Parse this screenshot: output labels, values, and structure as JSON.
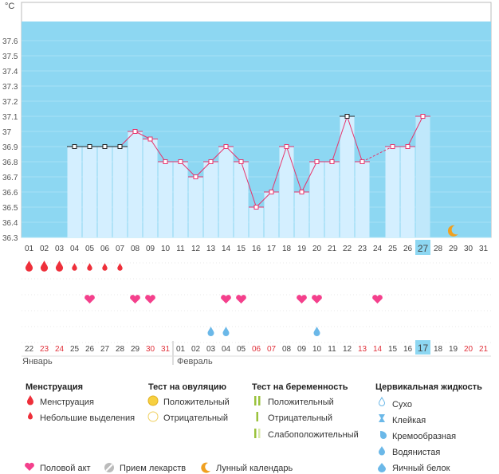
{
  "chart_data": {
    "type": "bar",
    "unit_label": "°C",
    "ylim": [
      36.3,
      37.65
    ],
    "y_ticks": [
      "37.6",
      "37.5",
      "37.4",
      "37.3",
      "37.2",
      "37.1",
      "37",
      "36.9",
      "36.8",
      "36.7",
      "36.6",
      "36.5",
      "36.4",
      "36.3"
    ],
    "cycle_days": [
      "01",
      "02",
      "03",
      "04",
      "05",
      "06",
      "07",
      "08",
      "09",
      "10",
      "11",
      "12",
      "13",
      "14",
      "15",
      "16",
      "17",
      "18",
      "19",
      "20",
      "21",
      "22",
      "23",
      "24",
      "25",
      "26",
      "27",
      "28",
      "29",
      "30",
      "31"
    ],
    "temperatures": [
      null,
      null,
      null,
      36.9,
      36.9,
      36.9,
      36.9,
      37.0,
      36.95,
      36.8,
      36.8,
      36.7,
      36.8,
      36.9,
      36.8,
      36.5,
      36.6,
      36.9,
      36.6,
      36.8,
      36.8,
      37.1,
      36.8,
      null,
      36.9,
      36.9,
      37.1,
      null,
      null,
      null,
      null
    ],
    "square_markers": [
      4,
      5,
      6,
      7,
      22
    ],
    "current_day": "27",
    "menstruation_heavy": [
      1,
      2,
      3
    ],
    "menstruation_light": [
      4,
      5,
      6,
      7
    ],
    "intercourse": [
      5,
      8,
      9,
      14,
      15,
      19,
      20,
      24
    ],
    "cervical_watery": [
      13,
      14,
      20
    ],
    "moon_day": 29,
    "calendar_dates": [
      "22",
      "23",
      "24",
      "25",
      "26",
      "27",
      "28",
      "29",
      "30",
      "31",
      "01",
      "02",
      "03",
      "04",
      "05",
      "06",
      "07",
      "08",
      "09",
      "10",
      "11",
      "12",
      "13",
      "14",
      "15",
      "16",
      "17",
      "18",
      "19",
      "20",
      "21"
    ],
    "red_dates": [
      2,
      3,
      9,
      10,
      16,
      17,
      23,
      24,
      30,
      31
    ],
    "current_date": "17",
    "months": {
      "first": "Январь",
      "second": "Февраль"
    }
  },
  "legend": {
    "menstruation": {
      "title": "Менструация",
      "items": [
        "Менструация",
        "Небольшие выделения"
      ]
    },
    "ovulation": {
      "title": "Тест на овуляцию",
      "items": [
        "Положительный",
        "Отрицательный"
      ]
    },
    "pregnancy": {
      "title": "Тест на беременность",
      "items": [
        "Положительный",
        "Отрицательный",
        "Слабоположительный"
      ]
    },
    "cervical": {
      "title": "Цервикальная жидкость",
      "items": [
        "Сухо",
        "Клейкая",
        "Кремообразная",
        "Водянистая",
        "Яичный белок"
      ]
    },
    "bottom": [
      "Половой акт",
      "Прием лекарств",
      "Лунный календарь"
    ]
  },
  "colors": {
    "plot_bg": "#8dd7f2",
    "bar": "#d4efff",
    "line": "#e8336b",
    "drop": "#ee2f3a",
    "heart": "#f4408c",
    "watery": "#6bb8e8",
    "moon": "#f0a020"
  }
}
